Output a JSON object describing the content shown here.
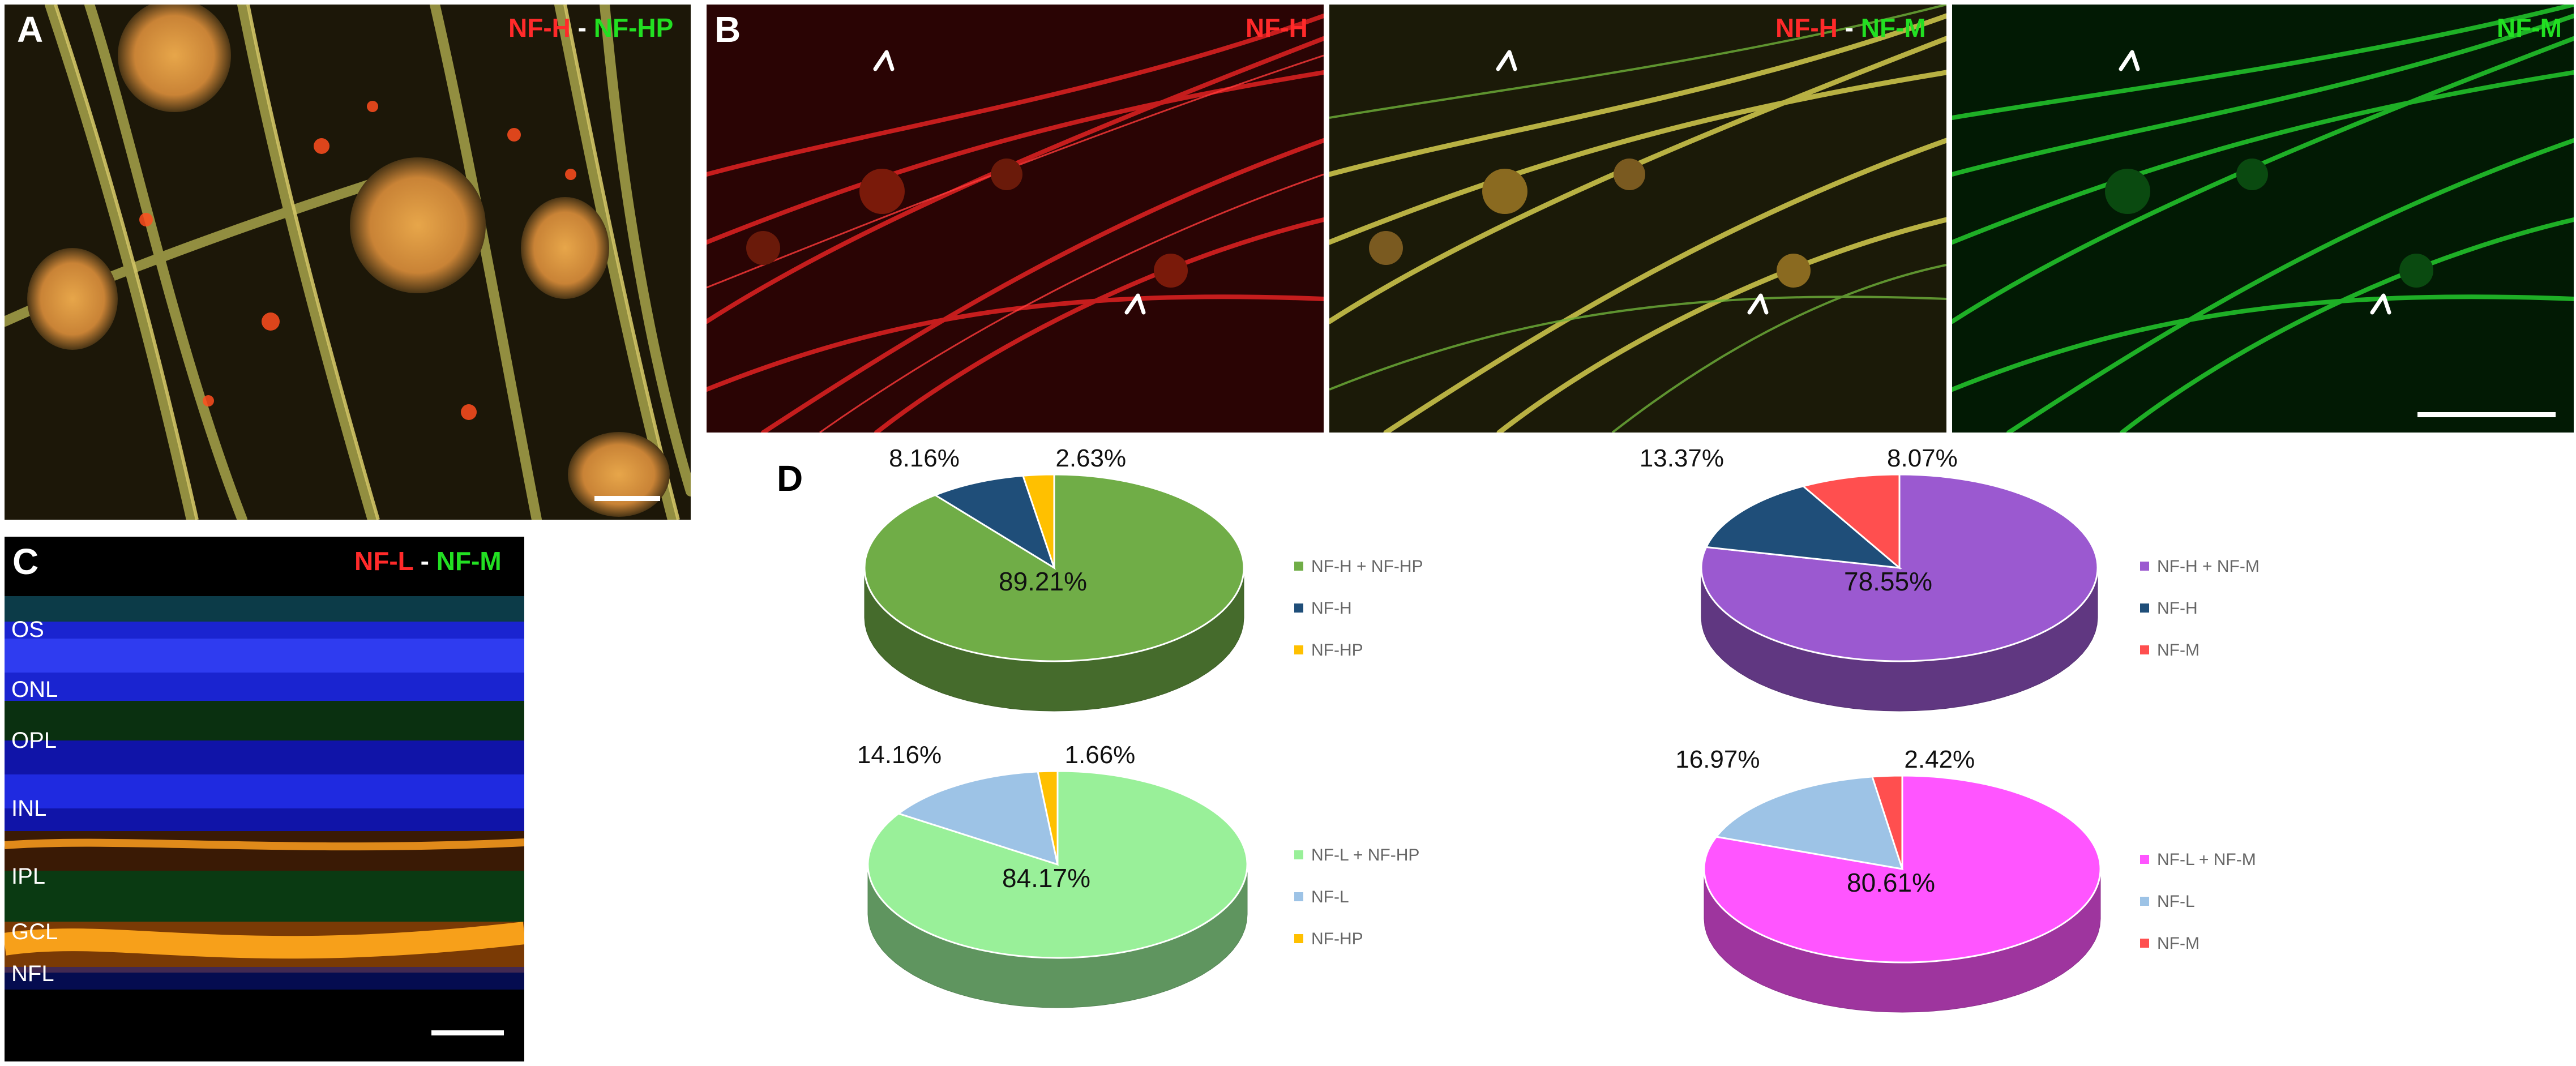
{
  "panel_a": {
    "letter": "A",
    "title_left": "NF-H",
    "title_sep": " - ",
    "title_right": "NF-HP"
  },
  "panel_b": {
    "letter": "B",
    "sub1_title": "NF-H",
    "sub2_title_left": "NF-H",
    "sub2_title_sep": " - ",
    "sub2_title_right": "NF-M",
    "sub3_title": "NF-M"
  },
  "panel_c": {
    "letter": "C",
    "title_left": "NF-L",
    "title_sep": " - ",
    "title_right": "NF-M",
    "layers": [
      "OS",
      "ONL",
      "OPL",
      "INL",
      "IPL",
      "GCL",
      "NFL"
    ]
  },
  "panel_d": {
    "letter": "D"
  },
  "colors": {
    "nfh_nfhp_combo": "#70ad47",
    "nfh": "#1f4e79",
    "nfhp": "#ffc000",
    "nfh_nfm_combo": "#9b59d0",
    "nfm": "#ff4f4f",
    "nfl_nfhp_combo": "#99f099",
    "nfl": "#9dc3e6",
    "nfl_nfm_combo": "#ff55ff"
  },
  "chart_data": [
    {
      "type": "pie",
      "slices": [
        {
          "label": "NF-H + NF-HP",
          "value": 89.21,
          "display": "89.21%",
          "color": "#70ad47"
        },
        {
          "label": "NF-H",
          "value": 8.16,
          "display": "8.16%",
          "color": "#1f4e79"
        },
        {
          "label": "NF-HP",
          "value": 2.63,
          "display": "2.63%",
          "color": "#ffc000"
        }
      ]
    },
    {
      "type": "pie",
      "slices": [
        {
          "label": "NF-H + NF-M",
          "value": 78.55,
          "display": "78.55%",
          "color": "#9b59d0"
        },
        {
          "label": "NF-H",
          "value": 13.37,
          "display": "13.37%",
          "color": "#1f4e79"
        },
        {
          "label": "NF-M",
          "value": 8.07,
          "display": "8.07%",
          "color": "#ff4f4f"
        }
      ]
    },
    {
      "type": "pie",
      "slices": [
        {
          "label": "NF-L + NF-HP",
          "value": 84.17,
          "display": "84.17%",
          "color": "#99f099"
        },
        {
          "label": "NF-L",
          "value": 14.16,
          "display": "14.16%",
          "color": "#9dc3e6"
        },
        {
          "label": "NF-HP",
          "value": 1.66,
          "display": "1.66%",
          "color": "#ffc000"
        }
      ]
    },
    {
      "type": "pie",
      "slices": [
        {
          "label": "NF-L + NF-M",
          "value": 80.61,
          "display": "80.61%",
          "color": "#ff55ff"
        },
        {
          "label": "NF-L",
          "value": 16.97,
          "display": "16.97%",
          "color": "#9dc3e6"
        },
        {
          "label": "NF-M",
          "value": 2.42,
          "display": "2.42%",
          "color": "#ff4f4f"
        }
      ]
    }
  ]
}
